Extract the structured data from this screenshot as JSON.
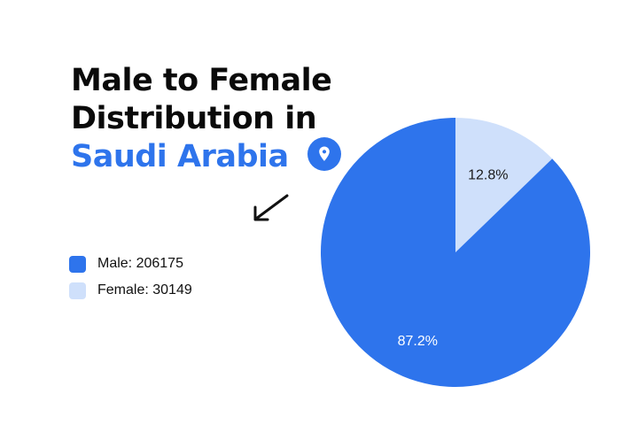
{
  "title": {
    "line1": "Male to Female",
    "line2": "Distribution in",
    "line3": "Saudi Arabia"
  },
  "icons": {
    "location": "location-pin-icon",
    "arrow": "arrow-down-left-icon"
  },
  "colors": {
    "male": "#2e74ec",
    "female": "#cfe0fb",
    "title": "#0a0a0a",
    "accent": "#2e74ec"
  },
  "legend": {
    "items": [
      {
        "label": "Male: 206175"
      },
      {
        "label": "Female: 30149"
      }
    ]
  },
  "chart_data": {
    "type": "pie",
    "title": "Male to Female Distribution in Saudi Arabia",
    "slices": [
      {
        "name": "Female",
        "value": 30149,
        "percent_label": "12.8%",
        "color": "#cfe0fb"
      },
      {
        "name": "Male",
        "value": 206175,
        "percent_label": "87.2%",
        "color": "#2e74ec"
      }
    ],
    "legend_position": "left"
  }
}
